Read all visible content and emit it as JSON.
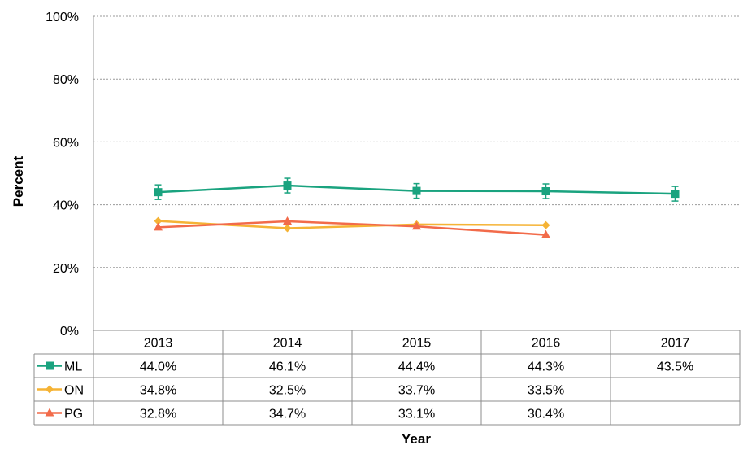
{
  "chart_data": {
    "type": "line",
    "ylabel": "Percent",
    "xlabel": "Year",
    "ylim": [
      0,
      100
    ],
    "y_ticks": [
      "0%",
      "20%",
      "40%",
      "60%",
      "80%",
      "100%"
    ],
    "grid": "horizontal dotted",
    "legend": "data table below chart",
    "categories": [
      "2013",
      "2014",
      "2015",
      "2016",
      "2017"
    ],
    "series": [
      {
        "name": "ML",
        "color": "#1aa37f",
        "marker": "square",
        "error_bars": true,
        "values": [
          44.0,
          46.1,
          44.4,
          44.3,
          43.5
        ],
        "labels": [
          "44.0%",
          "46.1%",
          "44.4%",
          "44.3%",
          "43.5%"
        ]
      },
      {
        "name": "ON",
        "color": "#f5b335",
        "marker": "diamond",
        "error_bars": false,
        "values": [
          34.8,
          32.5,
          33.7,
          33.5,
          null
        ],
        "labels": [
          "34.8%",
          "32.5%",
          "33.7%",
          "33.5%",
          ""
        ]
      },
      {
        "name": "PG",
        "color": "#f26b4a",
        "marker": "triangle",
        "error_bars": false,
        "values": [
          32.8,
          34.7,
          33.1,
          30.4,
          null
        ],
        "labels": [
          "32.8%",
          "34.7%",
          "33.1%",
          "30.4%",
          ""
        ]
      }
    ]
  }
}
